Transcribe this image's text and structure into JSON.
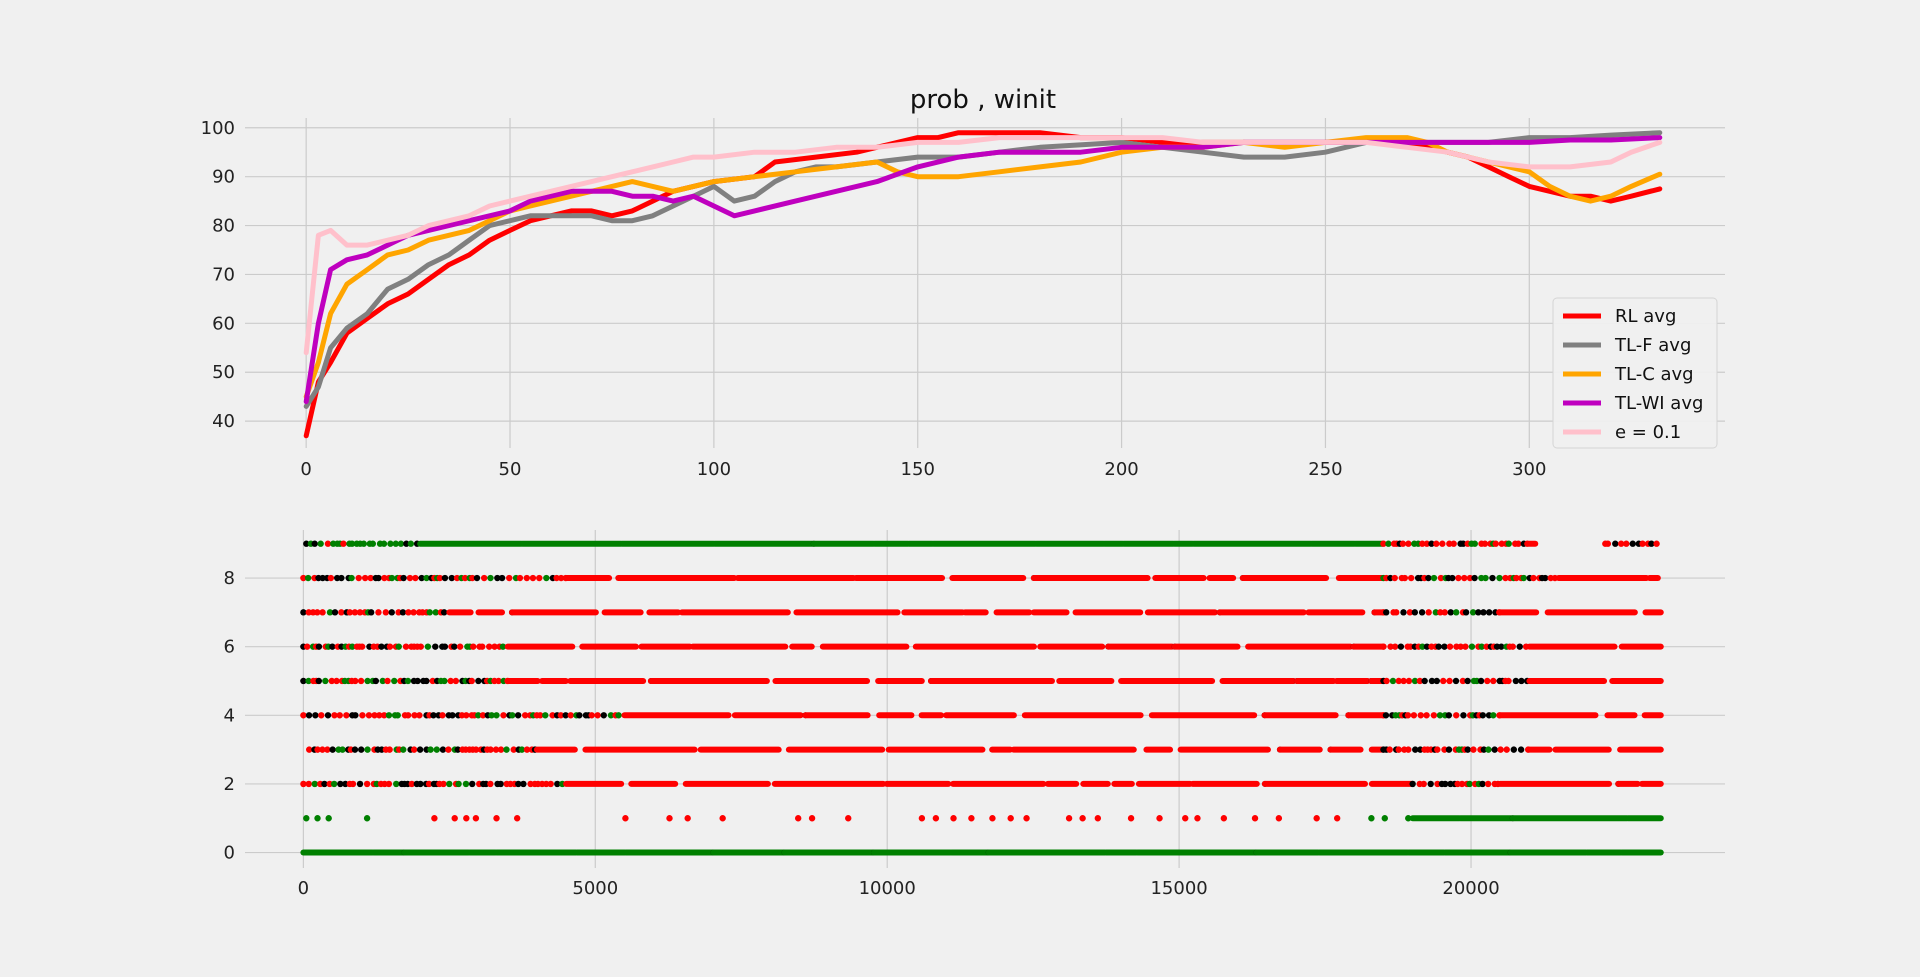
{
  "chart_data": [
    {
      "type": "line",
      "title": "prob , winit",
      "xlabel": "",
      "ylabel": "",
      "xlim": [
        -15,
        348
      ],
      "ylim": [
        34.5,
        102
      ],
      "xticks": [
        0,
        50,
        100,
        150,
        200,
        250,
        300
      ],
      "yticks": [
        40,
        50,
        60,
        70,
        80,
        90,
        100
      ],
      "grid": true,
      "legend_position": "lower-right",
      "series": [
        {
          "name": "RL avg",
          "color": "#ff0000",
          "x": [
            0,
            3,
            6,
            10,
            15,
            20,
            25,
            30,
            35,
            40,
            45,
            50,
            55,
            60,
            65,
            70,
            75,
            80,
            85,
            90,
            95,
            100,
            110,
            115,
            125,
            135,
            140,
            145,
            150,
            155,
            160,
            170,
            180,
            190,
            200,
            210,
            220,
            230,
            240,
            250,
            260,
            270,
            275,
            280,
            285,
            290,
            295,
            300,
            305,
            310,
            315,
            320,
            325,
            332
          ],
          "y": [
            37,
            48,
            52,
            58,
            61,
            64,
            66,
            69,
            72,
            74,
            77,
            79,
            81,
            82,
            83,
            83,
            82,
            83,
            85,
            87,
            88,
            89,
            90,
            93,
            94,
            95,
            96,
            97,
            98,
            98,
            99,
            99,
            99,
            98,
            98,
            97,
            97,
            97,
            97,
            97,
            97,
            97,
            96,
            95,
            94,
            92,
            90,
            88,
            87,
            86,
            86,
            85,
            86,
            87.5
          ]
        },
        {
          "name": "TL-F avg",
          "color": "#808080",
          "x": [
            0,
            3,
            6,
            10,
            15,
            20,
            25,
            30,
            35,
            40,
            45,
            50,
            55,
            60,
            65,
            70,
            75,
            80,
            85,
            90,
            95,
            100,
            105,
            110,
            115,
            120,
            125,
            130,
            140,
            150,
            160,
            170,
            180,
            200,
            210,
            220,
            230,
            240,
            250,
            260,
            270,
            280,
            290,
            300,
            310,
            320,
            332
          ],
          "y": [
            43,
            47,
            55,
            59,
            62,
            67,
            69,
            72,
            74,
            77,
            80,
            81,
            82,
            82,
            82,
            82,
            81,
            81,
            82,
            84,
            86,
            88,
            85,
            86,
            89,
            91,
            92,
            92,
            93,
            94,
            94,
            95,
            96,
            97,
            96,
            95,
            94,
            94,
            95,
            97,
            97,
            97,
            97,
            98,
            98,
            98.5,
            99
          ]
        },
        {
          "name": "TL-C avg",
          "color": "#ffa500",
          "x": [
            0,
            3,
            6,
            10,
            15,
            20,
            25,
            30,
            35,
            40,
            45,
            50,
            55,
            60,
            65,
            70,
            75,
            80,
            85,
            90,
            95,
            100,
            110,
            120,
            130,
            140,
            145,
            150,
            160,
            170,
            180,
            190,
            200,
            210,
            220,
            230,
            240,
            250,
            260,
            270,
            275,
            280,
            290,
            300,
            305,
            310,
            315,
            320,
            325,
            332
          ],
          "y": [
            45,
            52,
            62,
            68,
            71,
            74,
            75,
            77,
            78,
            79,
            81,
            83,
            84,
            85,
            86,
            87,
            88,
            89,
            88,
            87,
            88,
            89,
            90,
            91,
            92,
            93,
            91,
            90,
            90,
            91,
            92,
            93,
            95,
            96,
            96,
            97,
            96,
            97,
            98,
            98,
            97,
            95,
            93,
            91,
            88,
            86,
            85,
            86,
            88,
            90.5
          ]
        },
        {
          "name": "TL-WI avg",
          "color": "#bf00bf",
          "x": [
            0,
            3,
            6,
            10,
            15,
            20,
            25,
            30,
            35,
            40,
            45,
            50,
            55,
            60,
            65,
            70,
            75,
            80,
            85,
            90,
            95,
            100,
            105,
            110,
            120,
            130,
            140,
            150,
            160,
            170,
            180,
            190,
            200,
            210,
            220,
            230,
            240,
            250,
            260,
            270,
            280,
            290,
            300,
            310,
            320,
            332
          ],
          "y": [
            44,
            60,
            71,
            73,
            74,
            76,
            78,
            79,
            80,
            81,
            82,
            83,
            85,
            86,
            87,
            87,
            87,
            86,
            86,
            85,
            86,
            84,
            82,
            83,
            85,
            87,
            89,
            92,
            94,
            95,
            95,
            95,
            96,
            96,
            96,
            97,
            97,
            97,
            97,
            97,
            97,
            97,
            97,
            97.5,
            97.5,
            98
          ]
        },
        {
          "name": "e = 0.1",
          "color": "#ffc0cb",
          "x": [
            0,
            3,
            6,
            10,
            15,
            20,
            25,
            30,
            35,
            40,
            45,
            50,
            55,
            60,
            65,
            70,
            75,
            80,
            85,
            90,
            95,
            100,
            110,
            120,
            130,
            140,
            150,
            160,
            170,
            180,
            190,
            200,
            210,
            220,
            230,
            240,
            250,
            260,
            270,
            280,
            290,
            300,
            310,
            320,
            325,
            332
          ],
          "y": [
            54,
            78,
            79,
            76,
            76,
            77,
            78,
            80,
            81,
            82,
            84,
            85,
            86,
            87,
            88,
            89,
            90,
            91,
            92,
            93,
            94,
            94,
            95,
            95,
            96,
            96,
            97,
            97,
            98,
            98,
            98,
            98,
            98,
            97,
            97,
            97,
            97,
            97,
            96,
            95,
            93,
            92,
            92,
            93,
            95,
            97
          ]
        }
      ]
    },
    {
      "type": "scatter",
      "title": "",
      "xlabel": "",
      "ylabel": "",
      "xlim": [
        -1000,
        24350
      ],
      "ylim": [
        -0.45,
        9.4
      ],
      "xticks": [
        0,
        5000,
        10000,
        15000,
        20000
      ],
      "yticks": [
        0,
        2,
        4,
        6,
        8
      ],
      "grid": true,
      "colors": {
        "green": "#008000",
        "red": "#ff0000",
        "black": "#000000"
      },
      "x_max": 23250,
      "rows": [
        {
          "y": 0,
          "segments": [
            [
              0,
              23250,
              "green"
            ]
          ]
        },
        {
          "y": 1,
          "segments": [
            [
              50,
              1300,
              "sparse-green"
            ],
            [
              2000,
              9500,
              "sparse-red"
            ],
            [
              9500,
              18000,
              "sparse-red"
            ],
            [
              18000,
              19000,
              "sparse-green"
            ],
            [
              19000,
              23250,
              "green"
            ]
          ]
        },
        {
          "y": 2,
          "segments": [
            [
              0,
              4500,
              "mixed"
            ],
            [
              4500,
              19000,
              "red"
            ],
            [
              19000,
              20500,
              "mixed"
            ],
            [
              20500,
              23250,
              "red"
            ]
          ]
        },
        {
          "y": 3,
          "segments": [
            [
              100,
              4000,
              "mixed"
            ],
            [
              4000,
              18500,
              "red"
            ],
            [
              18500,
              21000,
              "mixed"
            ],
            [
              21000,
              23250,
              "red"
            ]
          ]
        },
        {
          "y": 4,
          "segments": [
            [
              0,
              5500,
              "mixed"
            ],
            [
              5500,
              18500,
              "red"
            ],
            [
              18500,
              20500,
              "mixed"
            ],
            [
              20500,
              23250,
              "red"
            ]
          ]
        },
        {
          "y": 5,
          "segments": [
            [
              0,
              3500,
              "mixed"
            ],
            [
              3500,
              18500,
              "red"
            ],
            [
              18500,
              21000,
              "mixed"
            ],
            [
              21000,
              23250,
              "red"
            ]
          ]
        },
        {
          "y": 6,
          "segments": [
            [
              0,
              3500,
              "mixed"
            ],
            [
              3500,
              18500,
              "red"
            ],
            [
              18500,
              21000,
              "mixed"
            ],
            [
              21000,
              23250,
              "red"
            ]
          ]
        },
        {
          "y": 7,
          "segments": [
            [
              0,
              2500,
              "mixed"
            ],
            [
              2500,
              18500,
              "red"
            ],
            [
              18500,
              20500,
              "mixed"
            ],
            [
              20500,
              23250,
              "red"
            ]
          ]
        },
        {
          "y": 8,
          "segments": [
            [
              0,
              4500,
              "mixed"
            ],
            [
              4500,
              18500,
              "red"
            ],
            [
              18500,
              21500,
              "mixed"
            ],
            [
              21500,
              23200,
              "red"
            ]
          ]
        },
        {
          "y": 9,
          "segments": [
            [
              50,
              2000,
              "mixed-green"
            ],
            [
              2000,
              18500,
              "green"
            ],
            [
              18500,
              21000,
              "mixed"
            ],
            [
              21000,
              21100,
              "red"
            ],
            [
              22300,
              23200,
              "mixed-red"
            ]
          ]
        }
      ]
    }
  ]
}
